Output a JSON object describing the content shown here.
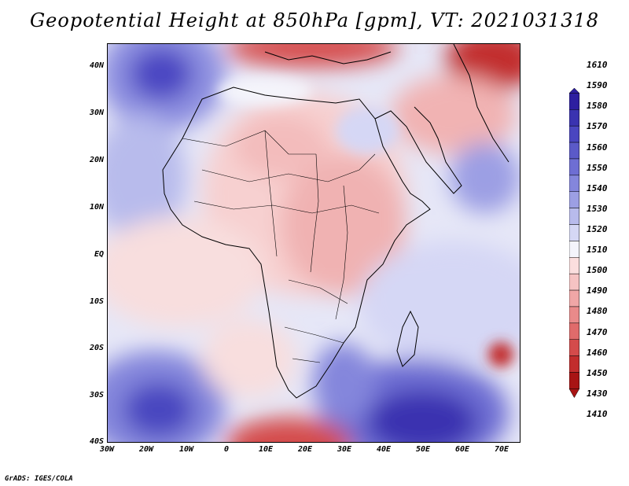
{
  "title": "Geopotential Height at 850hPa [gpm], VT: 2021031318",
  "credit": "GrADS: IGES/COLA",
  "latitude_labels": [
    "40N",
    "30N",
    "20N",
    "10N",
    "EQ",
    "10S",
    "20S",
    "30S",
    "40S"
  ],
  "longitude_labels": [
    "30W",
    "20W",
    "10W",
    "0",
    "10E",
    "20E",
    "30E",
    "40E",
    "50E",
    "60E",
    "70E"
  ],
  "colorbar": {
    "levels": [
      "1610",
      "1590",
      "1580",
      "1570",
      "1560",
      "1550",
      "1540",
      "1530",
      "1520",
      "1510",
      "1500",
      "1490",
      "1480",
      "1470",
      "1460",
      "1450",
      "1430",
      "1410"
    ],
    "colors": [
      "#2e1fa0",
      "#3a33b0",
      "#4a46c0",
      "#5b5ac8",
      "#6e6ed3",
      "#8486dc",
      "#9c9fe4",
      "#b8bbec",
      "#d5d7f5",
      "#f4f4fb",
      "#fbdede",
      "#f6c3c3",
      "#f0a6a6",
      "#e98a8a",
      "#e06b6b",
      "#d44b4b",
      "#c22d2d",
      "#a81414"
    ]
  }
}
